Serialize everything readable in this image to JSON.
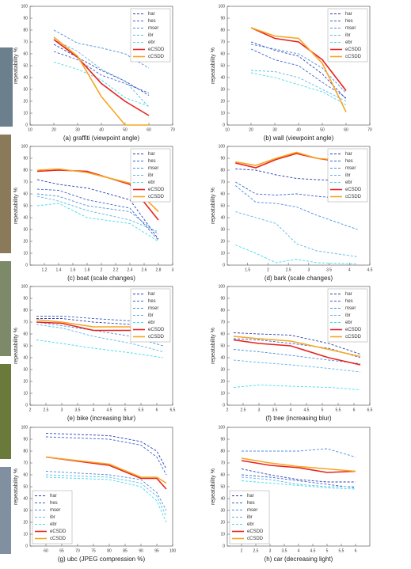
{
  "chart_data": [
    {
      "type": "line",
      "title": "(a) graffiti (viewpoint angle)",
      "ylabel": "repeatability %",
      "x": [
        20,
        30,
        40,
        50,
        60
      ],
      "xlim": [
        10,
        70
      ],
      "xticks": [
        10,
        20,
        30,
        40,
        50,
        60,
        70
      ],
      "ylim": [
        0,
        100
      ],
      "yticks": [
        0,
        10,
        20,
        30,
        40,
        50,
        60,
        70,
        80,
        90,
        100
      ],
      "legend": "upper right",
      "series": [
        {
          "name": "har",
          "color": "#2b3fb0",
          "linestyle": "dashed",
          "values": [
            68,
            57,
            46,
            37,
            25
          ]
        },
        {
          "name": "hes",
          "color": "#3a63d0",
          "linestyle": "dashed",
          "values": [
            62,
            55,
            42,
            35,
            27
          ]
        },
        {
          "name": "mser",
          "color": "#4a8ce0",
          "linestyle": "dashed",
          "values": [
            80,
            69,
            65,
            60,
            48
          ]
        },
        {
          "name": "ibr",
          "color": "#5fb6ea",
          "linestyle": "dashed",
          "values": [
            72,
            62,
            47,
            37,
            15
          ]
        },
        {
          "name": "ebr",
          "color": "#40dcf0",
          "linestyle": "dashed",
          "values": [
            53,
            47,
            38,
            23,
            16
          ]
        },
        {
          "name": "eCSDD",
          "color": "#e8221e",
          "linestyle": "solid",
          "values": [
            72,
            57,
            35,
            20,
            8
          ]
        },
        {
          "name": "cCSDD",
          "color": "#f5a623",
          "linestyle": "solid",
          "values": [
            74,
            58,
            24,
            0,
            0
          ]
        }
      ]
    },
    {
      "type": "line",
      "title": "(b) wall (viewpoint angle)",
      "ylabel": "repeatability %",
      "x": [
        20,
        30,
        40,
        50,
        60
      ],
      "xlim": [
        10,
        70
      ],
      "xticks": [
        10,
        20,
        30,
        40,
        50,
        60,
        70
      ],
      "ylim": [
        0,
        100
      ],
      "yticks": [
        0,
        10,
        20,
        30,
        40,
        50,
        60,
        70,
        80,
        90,
        100
      ],
      "legend": "upper right",
      "series": [
        {
          "name": "har",
          "color": "#2b3fb0",
          "linestyle": "dashed",
          "values": [
            70,
            63,
            58,
            43,
            22
          ]
        },
        {
          "name": "hes",
          "color": "#3a63d0",
          "linestyle": "dashed",
          "values": [
            64,
            55,
            50,
            36,
            23
          ]
        },
        {
          "name": "mser",
          "color": "#4a8ce0",
          "linestyle": "dashed",
          "values": [
            68,
            64,
            60,
            48,
            27
          ]
        },
        {
          "name": "ibr",
          "color": "#5fb6ea",
          "linestyle": "dashed",
          "values": [
            46,
            45,
            40,
            30,
            20
          ]
        },
        {
          "name": "ebr",
          "color": "#40dcf0",
          "linestyle": "dashed",
          "values": [
            44,
            40,
            34,
            28,
            17
          ]
        },
        {
          "name": "eCSDD",
          "color": "#e8221e",
          "linestyle": "solid",
          "values": [
            82,
            73,
            70,
            55,
            29
          ]
        },
        {
          "name": "cCSDD",
          "color": "#f5a623",
          "linestyle": "solid",
          "values": [
            82,
            75,
            73,
            52,
            11
          ]
        }
      ]
    },
    {
      "type": "line",
      "title": "(c) boat (scale changes)",
      "ylabel": "repeatability %",
      "x": [
        1.1,
        1.4,
        1.8,
        2.4,
        2.8
      ],
      "xlim": [
        1,
        3
      ],
      "xticks": [
        1.2,
        1.4,
        1.6,
        1.8,
        2,
        2.2,
        2.4,
        2.6,
        2.8,
        3
      ],
      "ylim": [
        0,
        100
      ],
      "yticks": [
        0,
        10,
        20,
        30,
        40,
        50,
        60,
        70,
        80,
        90,
        100
      ],
      "legend": "upper right",
      "series": [
        {
          "name": "har",
          "color": "#2b3fb0",
          "linestyle": "dashed",
          "values": [
            72,
            68,
            65,
            55,
            22
          ]
        },
        {
          "name": "hes",
          "color": "#3a63d0",
          "linestyle": "dashed",
          "values": [
            64,
            63,
            55,
            48,
            21
          ]
        },
        {
          "name": "mser",
          "color": "#4a8ce0",
          "linestyle": "dashed",
          "values": [
            60,
            58,
            50,
            45,
            26
          ]
        },
        {
          "name": "ibr",
          "color": "#5fb6ea",
          "linestyle": "dashed",
          "values": [
            58,
            54,
            46,
            38,
            28
          ]
        },
        {
          "name": "ebr",
          "color": "#40dcf0",
          "linestyle": "dashed",
          "values": [
            50,
            52,
            40,
            35,
            20
          ]
        },
        {
          "name": "eCSDD",
          "color": "#e8221e",
          "linestyle": "solid",
          "values": [
            79,
            80,
            79,
            68,
            38
          ]
        },
        {
          "name": "cCSDD",
          "color": "#f5a623",
          "linestyle": "solid",
          "values": [
            80,
            81,
            78,
            69,
            45
          ]
        }
      ]
    },
    {
      "type": "line",
      "title": "(d) bark (scale changes)",
      "ylabel": "repeatability %",
      "x": [
        1.2,
        1.7,
        2.2,
        2.7,
        3.2,
        4.2
      ],
      "xlim": [
        1,
        4.5
      ],
      "xticks": [
        1.5,
        2,
        2.5,
        3,
        3.5,
        4,
        4.5
      ],
      "ylim": [
        0,
        100
      ],
      "yticks": [
        0,
        10,
        20,
        30,
        40,
        50,
        60,
        70,
        80,
        90,
        100
      ],
      "legend": "upper right",
      "series": [
        {
          "name": "har",
          "color": "#2b3fb0",
          "linestyle": "dashed",
          "values": [
            81,
            80,
            76,
            73,
            72,
            71
          ]
        },
        {
          "name": "hes",
          "color": "#3a63d0",
          "linestyle": "dashed",
          "values": [
            70,
            60,
            59,
            60,
            58,
            55
          ]
        },
        {
          "name": "mser",
          "color": "#4a8ce0",
          "linestyle": "dashed",
          "values": [
            67,
            53,
            52,
            49,
            42,
            30
          ]
        },
        {
          "name": "ibr",
          "color": "#5fb6ea",
          "linestyle": "dashed",
          "values": [
            45,
            40,
            35,
            18,
            12,
            7
          ]
        },
        {
          "name": "ebr",
          "color": "#40dcf0",
          "linestyle": "dashed",
          "values": [
            17,
            10,
            2,
            5,
            2,
            1
          ]
        },
        {
          "name": "eCSDD",
          "color": "#e8221e",
          "linestyle": "solid",
          "values": [
            86,
            82,
            89,
            94,
            90,
            85
          ]
        },
        {
          "name": "cCSDD",
          "color": "#f5a623",
          "linestyle": "solid",
          "values": [
            87,
            84,
            90,
            95,
            90,
            87
          ]
        }
      ]
    },
    {
      "type": "line",
      "title": "(e) bike (increasing blur)",
      "ylabel": "repeatability %",
      "x": [
        2.2,
        3,
        4,
        5.2,
        6.2
      ],
      "xlim": [
        2,
        6.5
      ],
      "xticks": [
        2,
        2.5,
        3,
        3.5,
        4,
        4.5,
        5,
        5.5,
        6,
        6.5
      ],
      "ylim": [
        0,
        100
      ],
      "yticks": [
        0,
        10,
        20,
        30,
        40,
        50,
        60,
        70,
        80,
        90,
        100
      ],
      "legend": "upper right",
      "series": [
        {
          "name": "har",
          "color": "#2b3fb0",
          "linestyle": "dashed",
          "values": [
            73,
            73,
            70,
            68,
            63
          ]
        },
        {
          "name": "hes",
          "color": "#3a63d0",
          "linestyle": "dashed",
          "values": [
            75,
            75,
            73,
            71,
            67
          ]
        },
        {
          "name": "mser",
          "color": "#4a8ce0",
          "linestyle": "dashed",
          "values": [
            70,
            67,
            63,
            58,
            50
          ]
        },
        {
          "name": "ibr",
          "color": "#5fb6ea",
          "linestyle": "dashed",
          "values": [
            68,
            65,
            58,
            52,
            45
          ]
        },
        {
          "name": "ebr",
          "color": "#40dcf0",
          "linestyle": "dashed",
          "values": [
            55,
            52,
            48,
            44,
            40
          ]
        },
        {
          "name": "eCSDD",
          "color": "#e8221e",
          "linestyle": "solid",
          "values": [
            70,
            69,
            63,
            63,
            60
          ]
        },
        {
          "name": "cCSDD",
          "color": "#f5a623",
          "linestyle": "solid",
          "values": [
            72,
            70,
            66,
            66,
            66
          ]
        }
      ]
    },
    {
      "type": "line",
      "title": "(f) tree (increasing blur)",
      "ylabel": "repeatability %",
      "x": [
        2.2,
        3,
        4,
        5.2,
        6.2
      ],
      "xlim": [
        2,
        6.5
      ],
      "xticks": [
        2,
        2.5,
        3,
        3.5,
        4,
        4.5,
        5,
        5.5,
        6,
        6.5
      ],
      "ylim": [
        0,
        100
      ],
      "yticks": [
        0,
        10,
        20,
        30,
        40,
        50,
        60,
        70,
        80,
        90,
        100
      ],
      "legend": "upper right",
      "series": [
        {
          "name": "har",
          "color": "#2b3fb0",
          "linestyle": "dashed",
          "values": [
            61,
            60,
            59,
            52,
            43
          ]
        },
        {
          "name": "hes",
          "color": "#3a63d0",
          "linestyle": "dashed",
          "values": [
            56,
            55,
            52,
            48,
            40
          ]
        },
        {
          "name": "mser",
          "color": "#4a8ce0",
          "linestyle": "dashed",
          "values": [
            47,
            45,
            42,
            38,
            35
          ]
        },
        {
          "name": "ibr",
          "color": "#5fb6ea",
          "linestyle": "dashed",
          "values": [
            38,
            36,
            34,
            31,
            28
          ]
        },
        {
          "name": "ebr",
          "color": "#40dcf0",
          "linestyle": "dashed",
          "values": [
            15,
            17,
            16,
            15,
            13
          ]
        },
        {
          "name": "eCSDD",
          "color": "#e8221e",
          "linestyle": "solid",
          "values": [
            55,
            52,
            50,
            40,
            34
          ]
        },
        {
          "name": "cCSDD",
          "color": "#f5a623",
          "linestyle": "solid",
          "values": [
            58,
            56,
            54,
            47,
            41
          ]
        }
      ]
    },
    {
      "type": "line",
      "title": "(g) ubc (JPEG compression %)",
      "ylabel": "repeatability %",
      "x": [
        60,
        80,
        90,
        95,
        98
      ],
      "xlim": [
        55,
        100
      ],
      "xticks": [
        60,
        65,
        70,
        75,
        80,
        85,
        90,
        95,
        100
      ],
      "ylim": [
        0,
        100
      ],
      "yticks": [
        0,
        10,
        20,
        30,
        40,
        50,
        60,
        70,
        80,
        90,
        100
      ],
      "legend": "lower left",
      "series": [
        {
          "name": "har",
          "color": "#2b3fb0",
          "linestyle": "dashed",
          "values": [
            95,
            93,
            88,
            80,
            65
          ]
        },
        {
          "name": "hes",
          "color": "#3a63d0",
          "linestyle": "dashed",
          "values": [
            92,
            90,
            85,
            75,
            60
          ]
        },
        {
          "name": "mser",
          "color": "#4a8ce0",
          "linestyle": "dashed",
          "values": [
            63,
            60,
            56,
            45,
            30
          ]
        },
        {
          "name": "ibr",
          "color": "#5fb6ea",
          "linestyle": "dashed",
          "values": [
            60,
            58,
            53,
            42,
            25
          ]
        },
        {
          "name": "ebr",
          "color": "#40dcf0",
          "linestyle": "dashed",
          "values": [
            58,
            56,
            50,
            38,
            20
          ]
        },
        {
          "name": "eCSDD",
          "color": "#e8221e",
          "linestyle": "solid",
          "values": [
            75,
            68,
            57,
            57,
            48
          ]
        },
        {
          "name": "cCSDD",
          "color": "#f5a623",
          "linestyle": "solid",
          "values": [
            75,
            69,
            58,
            58,
            53
          ]
        }
      ]
    },
    {
      "type": "line",
      "title": "(h) car (decreasing light)",
      "ylabel": "repeatability %",
      "x": [
        2,
        3,
        4,
        5,
        6
      ],
      "xlim": [
        1.5,
        6.5
      ],
      "xticks": [
        2,
        2.5,
        3,
        3.5,
        4,
        4.5,
        5,
        5.5,
        6
      ],
      "ylim": [
        0,
        100
      ],
      "yticks": [
        0,
        10,
        20,
        30,
        40,
        50,
        60,
        70,
        80,
        90,
        100
      ],
      "legend": "lower left",
      "series": [
        {
          "name": "har",
          "color": "#2b3fb0",
          "linestyle": "dashed",
          "values": [
            65,
            60,
            56,
            54,
            54
          ]
        },
        {
          "name": "hes",
          "color": "#3a63d0",
          "linestyle": "dashed",
          "values": [
            60,
            58,
            55,
            52,
            49
          ]
        },
        {
          "name": "mser",
          "color": "#4a8ce0",
          "linestyle": "dashed",
          "values": [
            80,
            80,
            80,
            82,
            75
          ]
        },
        {
          "name": "ibr",
          "color": "#5fb6ea",
          "linestyle": "dashed",
          "values": [
            58,
            56,
            52,
            50,
            50
          ]
        },
        {
          "name": "ebr",
          "color": "#40dcf0",
          "linestyle": "dashed",
          "values": [
            55,
            53,
            51,
            49,
            48
          ]
        },
        {
          "name": "eCSDD",
          "color": "#e8221e",
          "linestyle": "solid",
          "values": [
            72,
            68,
            66,
            62,
            63
          ]
        },
        {
          "name": "cCSDD",
          "color": "#f5a623",
          "linestyle": "solid",
          "values": [
            74,
            70,
            67,
            65,
            63
          ]
        }
      ]
    }
  ]
}
